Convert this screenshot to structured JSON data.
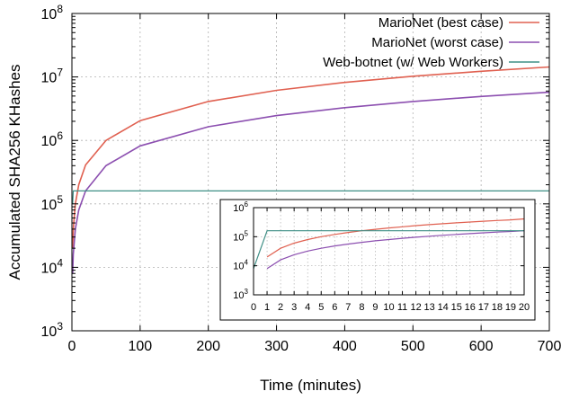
{
  "chart_data": [
    {
      "type": "line",
      "xlabel": "Time (minutes)",
      "ylabel": "Accumulated SHA256 KHashes",
      "xlim": [
        0,
        700
      ],
      "ylim": [
        1000,
        100000000
      ],
      "y_scale": "log",
      "grid": true,
      "legend_position": "top-right",
      "x_ticks": [
        "0",
        "100",
        "200",
        "300",
        "400",
        "500",
        "600",
        "700"
      ],
      "y_ticks": [
        {
          "value": 1000,
          "base": "10",
          "exp": "3"
        },
        {
          "value": 10000,
          "base": "10",
          "exp": "4"
        },
        {
          "value": 100000,
          "base": "10",
          "exp": "5"
        },
        {
          "value": 1000000,
          "base": "10",
          "exp": "6"
        },
        {
          "value": 10000000,
          "base": "10",
          "exp": "7"
        },
        {
          "value": 100000000,
          "base": "10",
          "exp": "8"
        }
      ],
      "x": [
        1,
        2,
        5,
        10,
        20,
        50,
        100,
        200,
        300,
        400,
        500,
        600,
        700
      ],
      "series": [
        {
          "name": "MarioNet (best case)",
          "color": "#e06050",
          "values": [
            20000,
            40000,
            100000,
            200000,
            410000,
            1000000,
            2050000,
            4100000,
            6150000,
            8200000,
            10250000,
            12300000,
            14350000
          ]
        },
        {
          "name": "MarioNet (worst case)",
          "color": "#8c4fb0",
          "values": [
            8000,
            16000,
            40000,
            80000,
            160000,
            400000,
            820000,
            1640000,
            2460000,
            3280000,
            4100000,
            4920000,
            5740000
          ]
        },
        {
          "name": "Web-botnet (w/ Web Workers)",
          "color": "#3f8f86",
          "values": [
            100000,
            160000,
            160000,
            160000,
            160000,
            160000,
            160000,
            160000,
            160000,
            160000,
            160000,
            160000,
            160000
          ]
        }
      ]
    },
    {
      "type": "line",
      "xlim": [
        0,
        20
      ],
      "ylim": [
        1000,
        1000000
      ],
      "y_scale": "log",
      "grid": true,
      "x_ticks": [
        "0",
        "1",
        "2",
        "3",
        "4",
        "5",
        "6",
        "7",
        "8",
        "9",
        "10",
        "11",
        "12",
        "13",
        "14",
        "15",
        "16",
        "17",
        "18",
        "19",
        "20"
      ],
      "y_ticks": [
        {
          "value": 1000,
          "base": "10",
          "exp": "3"
        },
        {
          "value": 10000,
          "base": "10",
          "exp": "4"
        },
        {
          "value": 100000,
          "base": "10",
          "exp": "5"
        },
        {
          "value": 1000000,
          "base": "10",
          "exp": "6"
        }
      ],
      "series": [
        {
          "name": "MarioNet (best case)",
          "color": "#e06050",
          "x": [
            1,
            2,
            3,
            4,
            5,
            6,
            7,
            8,
            9,
            10,
            11,
            12,
            13,
            14,
            15,
            16,
            17,
            18,
            19,
            20
          ],
          "values": [
            20000,
            40000,
            60000,
            80000,
            100000,
            120000,
            140000,
            160000,
            180000,
            200000,
            220000,
            240000,
            260000,
            280000,
            300000,
            320000,
            340000,
            360000,
            380000,
            410000
          ]
        },
        {
          "name": "MarioNet (worst case)",
          "color": "#8c4fb0",
          "x": [
            1,
            2,
            3,
            4,
            5,
            6,
            7,
            8,
            9,
            10,
            11,
            12,
            13,
            14,
            15,
            16,
            17,
            18,
            19,
            20
          ],
          "values": [
            8000,
            16000,
            24000,
            32000,
            40000,
            48000,
            56000,
            64000,
            72000,
            80000,
            88000,
            96000,
            104000,
            112000,
            120000,
            128000,
            136000,
            144000,
            152000,
            160000
          ]
        },
        {
          "name": "Web-botnet (w/ Web Workers)",
          "color": "#3f8f86",
          "x": [
            0,
            1,
            20
          ],
          "values": [
            8000,
            160000,
            160000
          ]
        }
      ]
    }
  ]
}
